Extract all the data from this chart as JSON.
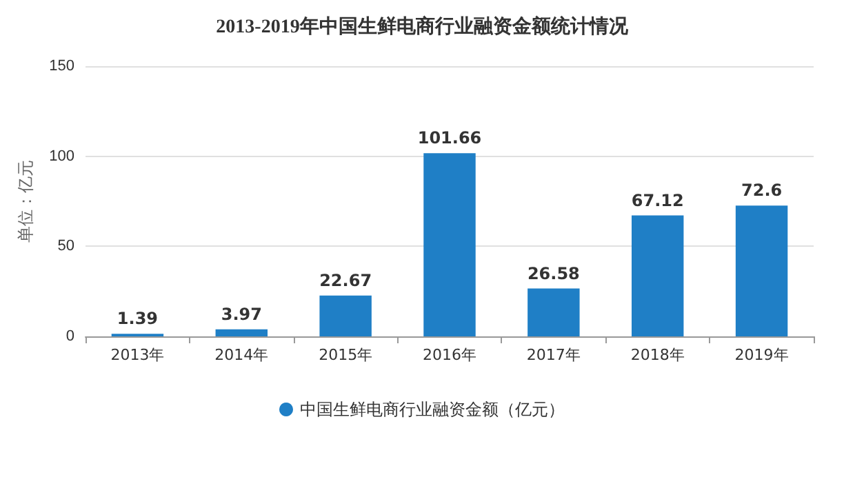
{
  "chart_data": {
    "type": "bar",
    "title": "2013-2019年中国生鲜电商行业融资金额统计情况",
    "ylabel": "单位：亿元",
    "categories": [
      "2013年",
      "2014年",
      "2015年",
      "2016年",
      "2017年",
      "2018年",
      "2019年"
    ],
    "series": [
      {
        "name": "中国生鲜电商行业融资金额（亿元）",
        "color": "#1f7fc6",
        "values": [
          1.39,
          3.97,
          22.67,
          101.66,
          26.58,
          67.12,
          72.6
        ]
      }
    ],
    "ylim": [
      0,
      150
    ],
    "yticks": [
      0,
      50,
      100,
      150
    ],
    "grid": "y",
    "legend": "bottom",
    "data_labels": true
  }
}
